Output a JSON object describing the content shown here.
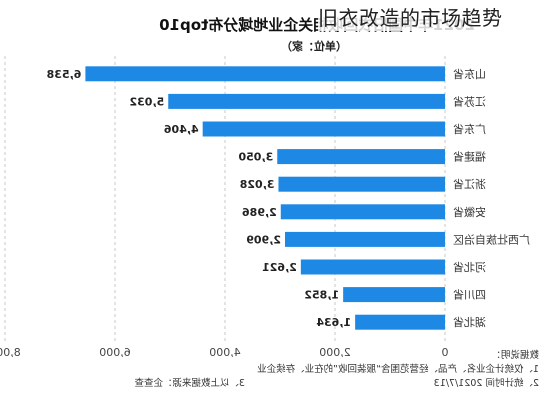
{
  "overlay_title": "旧衣改造的市场趋势",
  "chart_data": {
    "type": "bar",
    "orientation": "horizontal",
    "mirrored": true,
    "title": "2021年中国旧衣回收相关企业地域分布top10",
    "unit_label": "（单位：家）",
    "categories": [
      "山东省",
      "江苏省",
      "广东省",
      "福建省",
      "浙江省",
      "安徽省",
      "广西壮族自治区",
      "河北省",
      "四川省",
      "湖北省"
    ],
    "values": [
      6538,
      5032,
      4406,
      3050,
      3028,
      2986,
      2909,
      2621,
      1852,
      1634
    ],
    "value_labels": [
      "6,538",
      "5,032",
      "4,406",
      "3,050",
      "3,028",
      "2,986",
      "2,909",
      "2,621",
      "1,852",
      "1,634"
    ],
    "xlim": [
      0,
      8000
    ],
    "xticks": [
      "0",
      "2,000",
      "4,000",
      "6,000",
      "8,000"
    ],
    "xtick_values": [
      0,
      2000,
      4000,
      6000,
      8000
    ],
    "grid": true,
    "bar_color": "#1e88e5",
    "notes": {
      "title": "数据说明：",
      "line1": "1、仅统计企业名、产品、经营范围含“服装回收”的在业、存续企业",
      "line2": "2、统计时间  2021/7/13",
      "line3": "3、以上数据来源：企查查"
    }
  }
}
